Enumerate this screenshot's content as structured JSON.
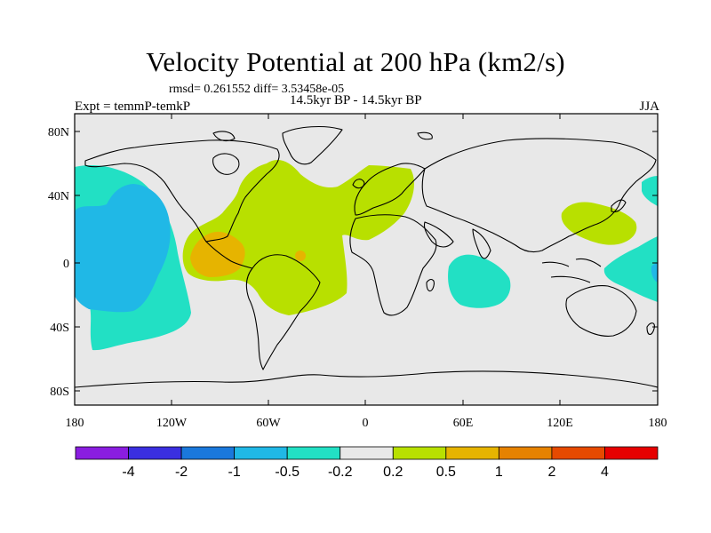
{
  "title": "Velocity Potential at 200 hPa (km2/s)",
  "stats": "rmsd= 0.261552 diff= 3.53458e-05",
  "expt": "Expt = temmP-temkP",
  "period": "14.5kyr BP - 14.5kyr BP",
  "season": "JJA",
  "lat_ticks": [
    "80N",
    "40N",
    "0",
    "40S",
    "80S"
  ],
  "lon_ticks": [
    "180",
    "120W",
    "60W",
    "0",
    "60E",
    "120E",
    "180"
  ],
  "colorbar": {
    "labels": [
      "-4",
      "-2",
      "-1",
      "-0.5",
      "-0.2",
      "0.2",
      "0.5",
      "1",
      "2",
      "4"
    ],
    "colors": [
      "#8a1de0",
      "#3a2fe0",
      "#1a78dc",
      "#20b8e6",
      "#22e0c4",
      "#e8e8e8",
      "#b8e000",
      "#e6b400",
      "#e68200",
      "#e64a00",
      "#e60000"
    ]
  },
  "regions": [
    {
      "name": "pacific-negative-region",
      "level": "-0.5"
    },
    {
      "name": "pacific-negative-core",
      "level": "-1"
    },
    {
      "name": "atlantic-positive-region",
      "level": "0.5"
    },
    {
      "name": "central-america-positive-core",
      "level": "1"
    },
    {
      "name": "indian-ocean-negative-region",
      "level": "-0.5"
    },
    {
      "name": "east-asia-positive-region",
      "level": "0.5"
    },
    {
      "name": "west-pacific-negative-region",
      "level": "-0.5"
    }
  ]
}
